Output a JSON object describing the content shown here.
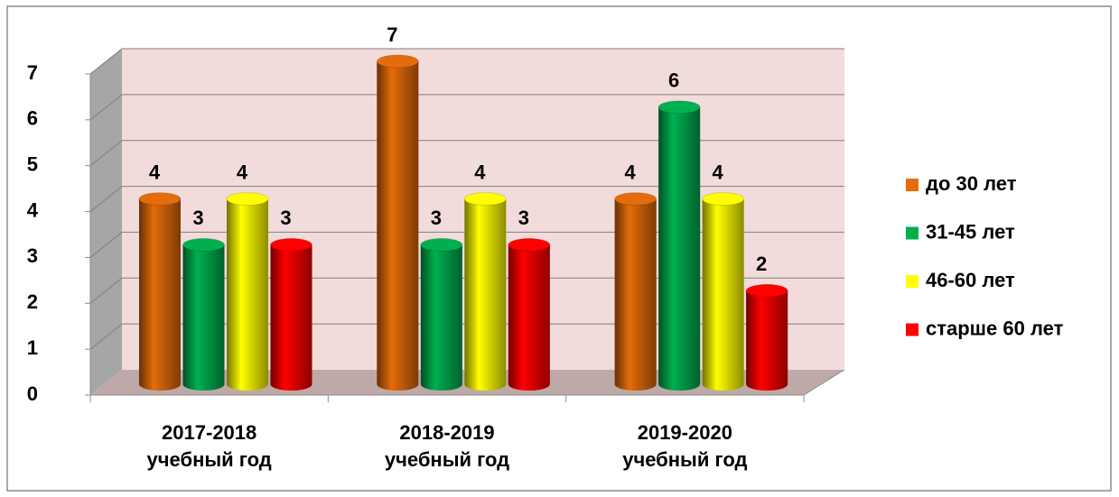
{
  "chart_data": {
    "type": "bar",
    "categories": [
      "2017-2018 учебный год",
      "2018-2019 учебный год",
      "2019-2020 учебный год"
    ],
    "series": [
      {
        "name": "до 30 лет",
        "color": "#e46c0a",
        "values": [
          4,
          7,
          4
        ]
      },
      {
        "name": "31-45 лет",
        "color": "#00b050",
        "values": [
          3,
          3,
          6
        ]
      },
      {
        "name": "46-60 лет",
        "color": "#ffff00",
        "values": [
          4,
          4,
          4
        ]
      },
      {
        "name": "старше 60 лет",
        "color": "#ff0000",
        "values": [
          3,
          3,
          2
        ]
      }
    ],
    "ylim": [
      0,
      7
    ],
    "yticks": [
      0,
      1,
      2,
      3,
      4,
      5,
      6,
      7
    ],
    "grid": true,
    "legend": "right"
  }
}
